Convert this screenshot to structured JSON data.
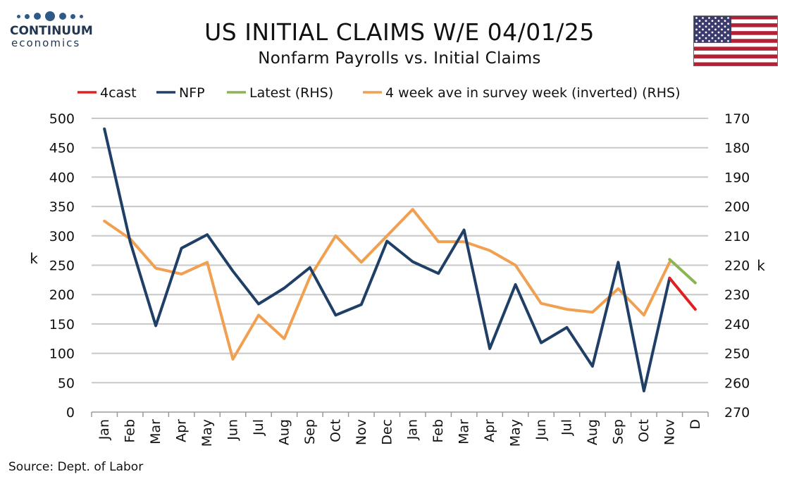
{
  "logo": {
    "word": "CONTINUUM",
    "sub": "economics"
  },
  "header": {
    "title": "US INITIAL CLAIMS W/E 04/01/25",
    "subtitle": "Nonfarm Payrolls vs. Initial Claims"
  },
  "flag": {
    "icon": "us-flag-icon"
  },
  "source": "Source: Dept. of Labor",
  "chart_data": {
    "type": "line",
    "categories": [
      "Jan",
      "Feb",
      "Mar",
      "Apr",
      "May",
      "Jun",
      "Jul",
      "Aug",
      "Sep",
      "Oct",
      "Nov",
      "Dec",
      "Jan",
      "Feb",
      "Mar",
      "Apr",
      "May",
      "Jun",
      "Jul",
      "Aug",
      "Sep",
      "Oct",
      "Nov",
      "D"
    ],
    "left_axis": {
      "label": "k",
      "min": 0,
      "max": 500,
      "ticks": [
        0,
        50,
        100,
        150,
        200,
        250,
        300,
        350,
        400,
        450,
        500
      ]
    },
    "right_axis": {
      "label": "k",
      "min": 170,
      "max": 270,
      "inverted": true,
      "ticks": [
        170,
        180,
        190,
        200,
        210,
        220,
        230,
        240,
        250,
        260,
        270
      ]
    },
    "grid": true,
    "legend_position": "top",
    "series": [
      {
        "name": "4cast",
        "axis": "left",
        "color": "#e02020",
        "x": [
          22,
          23
        ],
        "values": [
          228,
          175
        ]
      },
      {
        "name": "NFP",
        "axis": "left",
        "color": "#1f3f66",
        "x": [
          0,
          1,
          2,
          3,
          4,
          5,
          6,
          7,
          8,
          9,
          10,
          11,
          12,
          13,
          14,
          15,
          16,
          17,
          18,
          19,
          20,
          21,
          22
        ],
        "values": [
          482,
          290,
          147,
          279,
          302,
          240,
          184,
          211,
          246,
          165,
          183,
          291,
          256,
          236,
          310,
          108,
          217,
          118,
          144,
          78,
          255,
          36,
          228
        ]
      },
      {
        "name": "Latest (RHS)",
        "axis": "right",
        "color": "#8ab552",
        "x": [
          22,
          23
        ],
        "values": [
          218,
          226
        ]
      },
      {
        "name": "4 week ave in survey week (inverted) (RHS)",
        "axis": "right",
        "color": "#f0a050",
        "x": [
          0,
          1,
          2,
          3,
          4,
          5,
          6,
          7,
          8,
          9,
          10,
          11,
          12,
          13,
          14,
          15,
          16,
          17,
          18,
          19,
          20,
          21,
          22
        ],
        "values": [
          205,
          211,
          221,
          223,
          219,
          252,
          237,
          245,
          224,
          210,
          219,
          210,
          201,
          212,
          212,
          215,
          220,
          233,
          235,
          236,
          228,
          237,
          219
        ]
      }
    ]
  }
}
